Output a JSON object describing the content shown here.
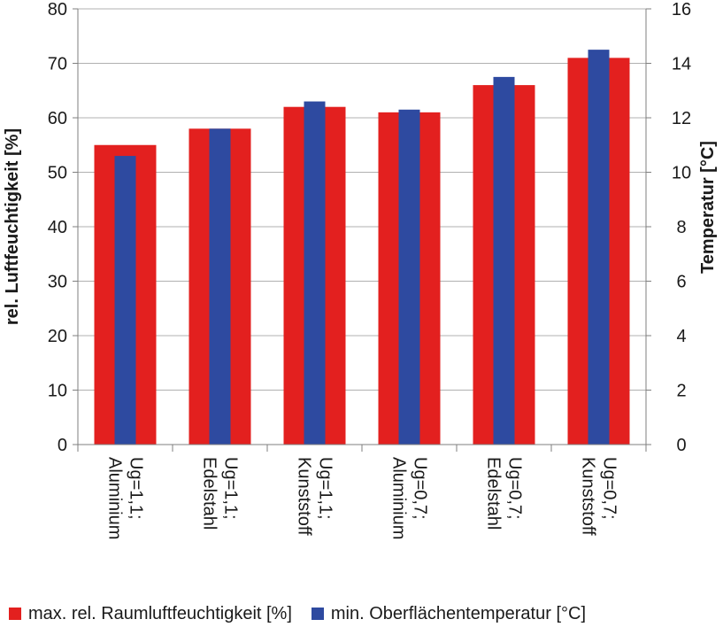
{
  "chart_data": {
    "type": "bar",
    "categories": [
      [
        "Ug=1,1;",
        "Aluminium"
      ],
      [
        "Ug=1,1;",
        "Edelstahl"
      ],
      [
        "Ug=1,1;",
        "Kunststoff"
      ],
      [
        "Ug=0,7;",
        "Aluminium"
      ],
      [
        "Ug=0,7;",
        "Edelstahl"
      ],
      [
        "Ug=0,7;",
        "Kunststoff"
      ]
    ],
    "series": [
      {
        "name": "max. rel. Raumluftfeuchtigkeit [%]",
        "axis": "left",
        "color": "#e3201f",
        "values": [
          55,
          58,
          62,
          61,
          66,
          71
        ]
      },
      {
        "name": "min. Oberflächentemperatur [°C]",
        "axis": "right",
        "color": "#2e4aa0",
        "values": [
          10.6,
          11.6,
          12.6,
          12.3,
          13.5,
          14.5
        ]
      }
    ],
    "ylabel": "rel. Luftfeuchtigkeit [%]",
    "y2label": "Temperatur [°C]",
    "ylim": [
      0,
      80
    ],
    "y2lim": [
      0,
      16
    ],
    "yticks": [
      "0",
      "10",
      "20",
      "30",
      "40",
      "50",
      "60",
      "70",
      "80"
    ],
    "y2ticks": [
      "0",
      "2",
      "4",
      "6",
      "8",
      "10",
      "12",
      "14",
      "16"
    ],
    "grid": true,
    "legend_position": "bottom"
  }
}
